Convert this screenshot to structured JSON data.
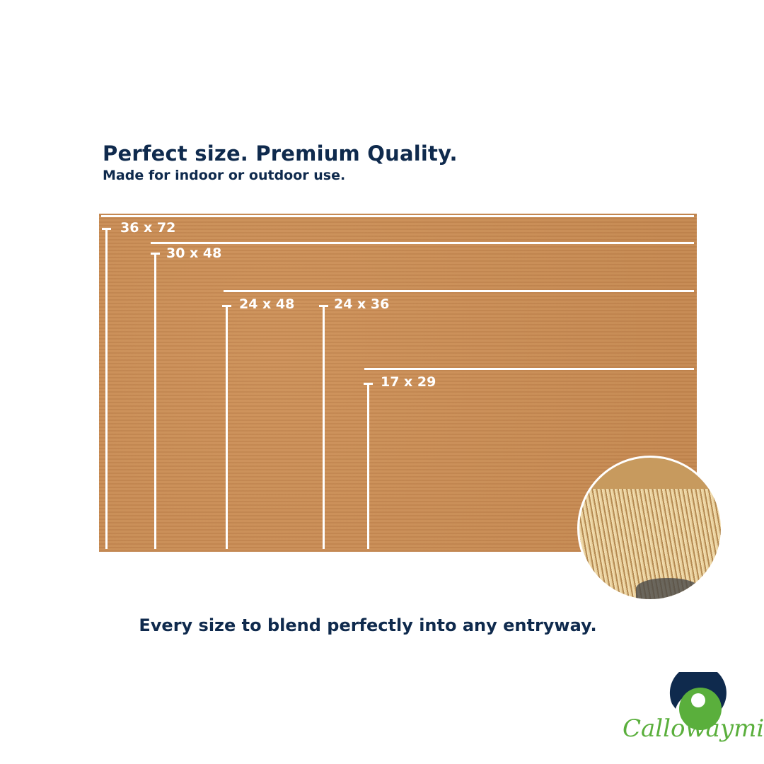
{
  "headline": "Perfect size. Premium Quality.",
  "subheadline": "Made for indoor or outdoor use.",
  "sizes": [
    "36 x 72",
    "30 x 48",
    "24 x 48",
    "24 x 36",
    "17 x 29"
  ],
  "tagline": "Every size to blend perfectly into any entryway.",
  "brand": {
    "name": "Callowaymills",
    "navy": "#0f2a4d",
    "green": "#5aaf3c"
  },
  "mat_color": "#c78a55"
}
